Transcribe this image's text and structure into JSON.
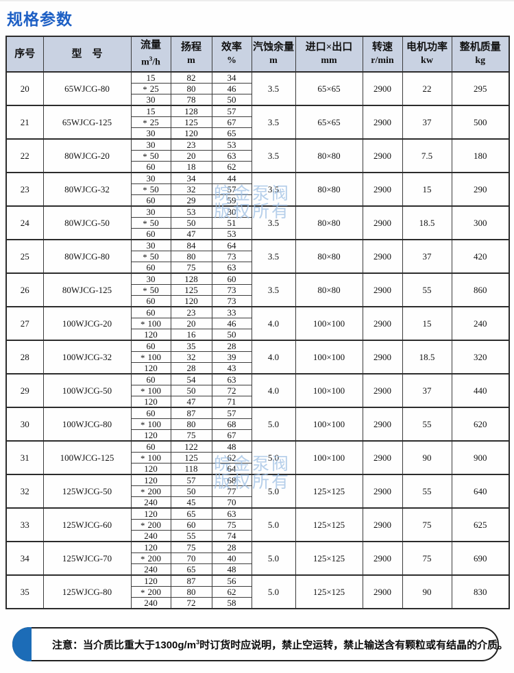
{
  "page": {
    "title": "规格参数"
  },
  "colors": {
    "accent_blue": "#1d5fc4",
    "header_bg": "#c9d2e2",
    "watermark": "#9fc0e4",
    "note_cap": "#1c6cb7"
  },
  "watermark": {
    "line1": "皖金泵阀",
    "line2": "版权所有"
  },
  "table": {
    "headers": {
      "index": "序号",
      "model": "型　号",
      "flow": {
        "label": "流量",
        "unit_base": "m",
        "unit_sup": "3",
        "unit_rest": "/h"
      },
      "head": {
        "label": "扬程",
        "unit": "m"
      },
      "eff": {
        "label": "效率",
        "unit": "%"
      },
      "npsh": {
        "label": "汽蚀余量",
        "unit": "m"
      },
      "ports": {
        "label": "进口×出口",
        "unit": "mm"
      },
      "speed": {
        "label": "转速",
        "unit": "r/min"
      },
      "power": {
        "label": "电机功率",
        "unit": "kw"
      },
      "weight": {
        "label": "整机质量",
        "unit": "kg"
      }
    },
    "rows": [
      {
        "no": "20",
        "model": "65WJCG-80",
        "flow": [
          "15",
          "* 25",
          "30"
        ],
        "head": [
          "82",
          "80",
          "78"
        ],
        "eff": [
          "34",
          "46",
          "50"
        ],
        "npsh": "3.5",
        "ports": "65×65",
        "speed": "2900",
        "power": "22",
        "weight": "295"
      },
      {
        "no": "21",
        "model": "65WJCG-125",
        "flow": [
          "15",
          "* 25",
          "30"
        ],
        "head": [
          "128",
          "125",
          "120"
        ],
        "eff": [
          "57",
          "67",
          "65"
        ],
        "npsh": "3.5",
        "ports": "65×65",
        "speed": "2900",
        "power": "37",
        "weight": "500"
      },
      {
        "no": "22",
        "model": "80WJCG-20",
        "flow": [
          "30",
          "* 50",
          "60"
        ],
        "head": [
          "23",
          "20",
          "18"
        ],
        "eff": [
          "53",
          "63",
          "62"
        ],
        "npsh": "3.5",
        "ports": "80×80",
        "speed": "2900",
        "power": "7.5",
        "weight": "180"
      },
      {
        "no": "23",
        "model": "80WJCG-32",
        "flow": [
          "30",
          "* 50",
          "60"
        ],
        "head": [
          "34",
          "32",
          "29"
        ],
        "eff": [
          "44",
          "57",
          "59"
        ],
        "npsh": "3.5",
        "ports": "80×80",
        "speed": "2900",
        "power": "15",
        "weight": "290"
      },
      {
        "no": "24",
        "model": "80WJCG-50",
        "flow": [
          "30",
          "* 50",
          "60"
        ],
        "head": [
          "53",
          "50",
          "47"
        ],
        "eff": [
          "30",
          "51",
          "53"
        ],
        "npsh": "3.5",
        "ports": "80×80",
        "speed": "2900",
        "power": "18.5",
        "weight": "300"
      },
      {
        "no": "25",
        "model": "80WJCG-80",
        "flow": [
          "30",
          "* 50",
          "60"
        ],
        "head": [
          "84",
          "80",
          "75"
        ],
        "eff": [
          "64",
          "73",
          "63"
        ],
        "npsh": "3.5",
        "ports": "80×80",
        "speed": "2900",
        "power": "37",
        "weight": "420"
      },
      {
        "no": "26",
        "model": "80WJCG-125",
        "flow": [
          "30",
          "* 50",
          "60"
        ],
        "head": [
          "128",
          "125",
          "120"
        ],
        "eff": [
          "60",
          "73",
          "73"
        ],
        "npsh": "3.5",
        "ports": "80×80",
        "speed": "2900",
        "power": "55",
        "weight": "860"
      },
      {
        "no": "27",
        "model": "100WJCG-20",
        "flow": [
          "60",
          "* 100",
          "120"
        ],
        "head": [
          "23",
          "20",
          "16"
        ],
        "eff": [
          "33",
          "46",
          "50"
        ],
        "npsh": "4.0",
        "ports": "100×100",
        "speed": "2900",
        "power": "15",
        "weight": "240"
      },
      {
        "no": "28",
        "model": "100WJCG-32",
        "flow": [
          "60",
          "* 100",
          "120"
        ],
        "head": [
          "35",
          "32",
          "28"
        ],
        "eff": [
          "28",
          "39",
          "43"
        ],
        "npsh": "4.0",
        "ports": "100×100",
        "speed": "2900",
        "power": "18.5",
        "weight": "320"
      },
      {
        "no": "29",
        "model": "100WJCG-50",
        "flow": [
          "60",
          "* 100",
          "120"
        ],
        "head": [
          "54",
          "50",
          "47"
        ],
        "eff": [
          "63",
          "72",
          "71"
        ],
        "npsh": "4.0",
        "ports": "100×100",
        "speed": "2900",
        "power": "37",
        "weight": "440"
      },
      {
        "no": "30",
        "model": "100WJCG-80",
        "flow": [
          "60",
          "* 100",
          "120"
        ],
        "head": [
          "87",
          "80",
          "75"
        ],
        "eff": [
          "57",
          "68",
          "67"
        ],
        "npsh": "5.0",
        "ports": "100×100",
        "speed": "2900",
        "power": "55",
        "weight": "620"
      },
      {
        "no": "31",
        "model": "100WJCG-125",
        "flow": [
          "60",
          "* 100",
          "120"
        ],
        "head": [
          "122",
          "125",
          "118"
        ],
        "eff": [
          "48",
          "62",
          "64"
        ],
        "npsh": "5.0",
        "ports": "100×100",
        "speed": "2900",
        "power": "90",
        "weight": "900"
      },
      {
        "no": "32",
        "model": "125WJCG-50",
        "flow": [
          "120",
          "* 200",
          "240"
        ],
        "head": [
          "57",
          "50",
          "45"
        ],
        "eff": [
          "68",
          "77",
          "70"
        ],
        "npsh": "5.0",
        "ports": "125×125",
        "speed": "2900",
        "power": "55",
        "weight": "640"
      },
      {
        "no": "33",
        "model": "125WJCG-60",
        "flow": [
          "120",
          "* 200",
          "240"
        ],
        "head": [
          "65",
          "60",
          "55"
        ],
        "eff": [
          "63",
          "75",
          "74"
        ],
        "npsh": "5.0",
        "ports": "125×125",
        "speed": "2900",
        "power": "75",
        "weight": "625"
      },
      {
        "no": "34",
        "model": "125WJCG-70",
        "flow": [
          "120",
          "* 200",
          "240"
        ],
        "head": [
          "75",
          "70",
          "65"
        ],
        "eff": [
          "28",
          "40",
          "48"
        ],
        "npsh": "5.0",
        "ports": "125×125",
        "speed": "2900",
        "power": "75",
        "weight": "690"
      },
      {
        "no": "35",
        "model": "125WJCG-80",
        "flow": [
          "120",
          "* 200",
          "240"
        ],
        "head": [
          "87",
          "80",
          "72"
        ],
        "eff": [
          "56",
          "62",
          "58"
        ],
        "npsh": "5.0",
        "ports": "125×125",
        "speed": "2900",
        "power": "90",
        "weight": "830"
      }
    ]
  },
  "note": {
    "label": "注意：",
    "body_pre": "当介质比重大于1300g/m",
    "sup": "3",
    "body_post": "时订货时应说明，禁止空运转，禁止输送含有颗粒或有结晶的介质。"
  }
}
